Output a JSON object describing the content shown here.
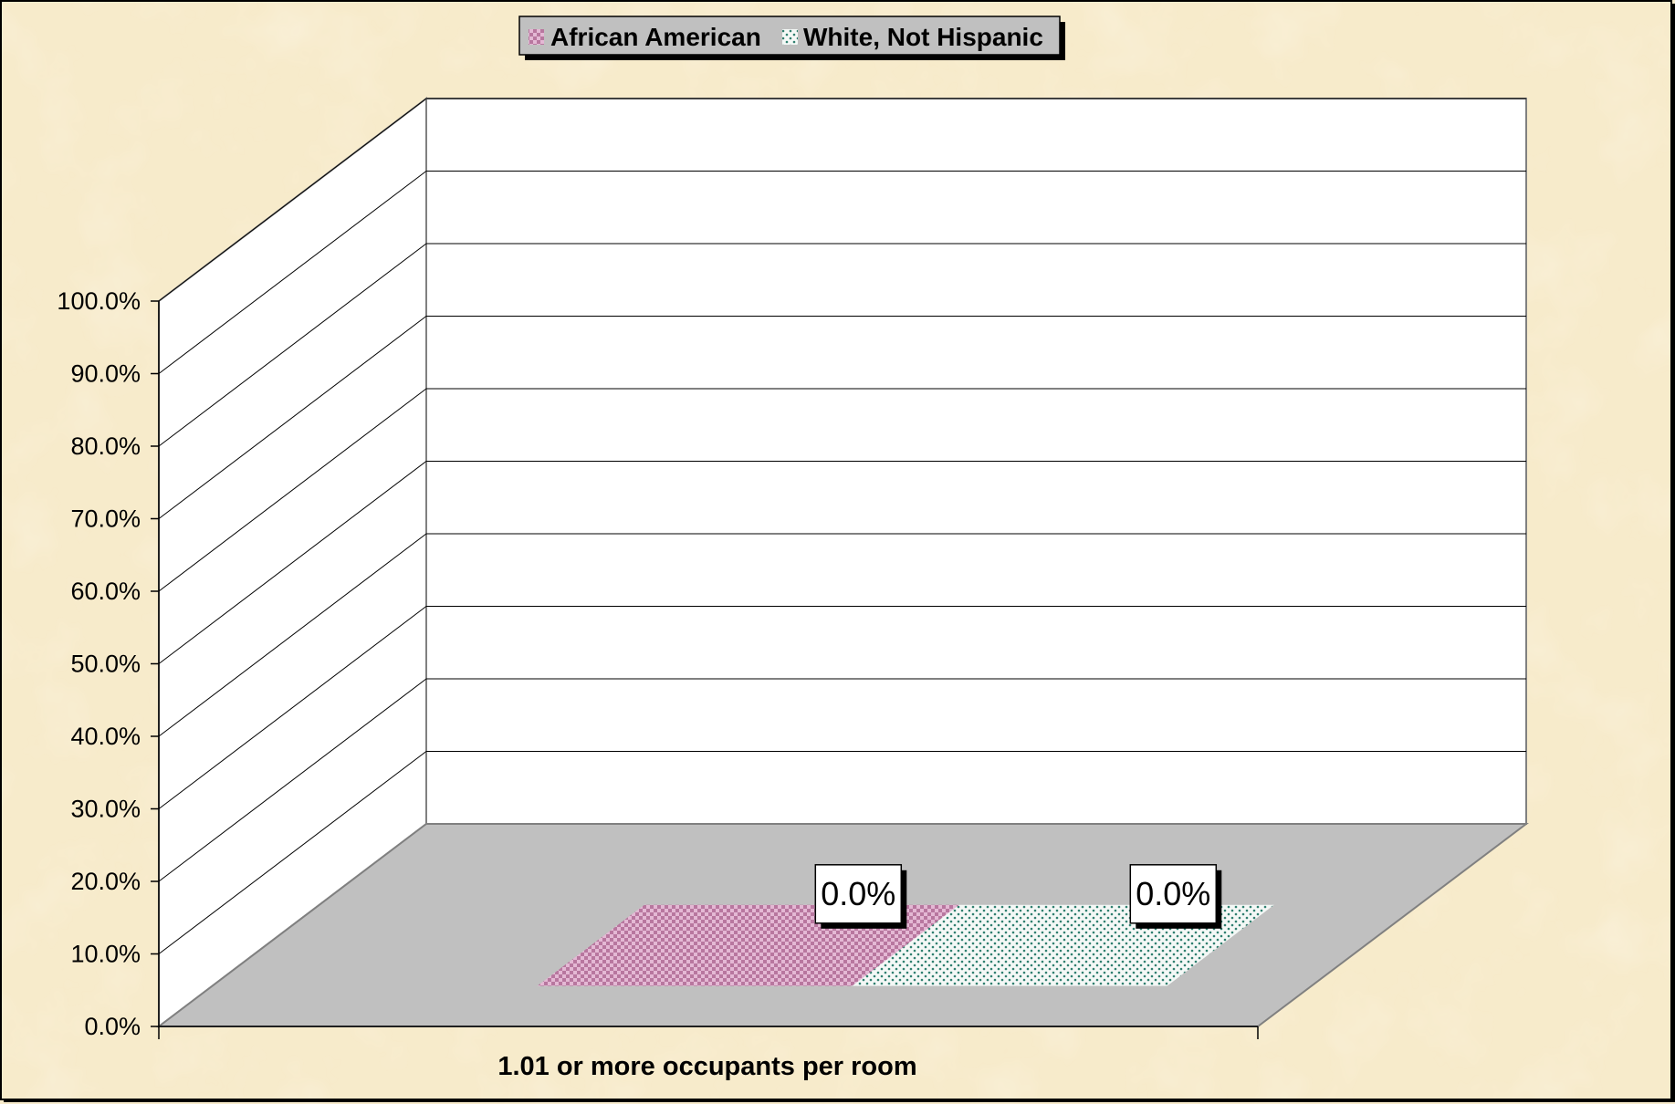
{
  "chart_data": {
    "type": "bar",
    "categories": [
      "1.01 or more occupants per room"
    ],
    "series": [
      {
        "name": "African American",
        "values": [
          0.0
        ],
        "data_labels": [
          "0.0%"
        ],
        "color": "#d9a0c8",
        "pattern": "checker"
      },
      {
        "name": "White, Not Hispanic",
        "values": [
          0.0
        ],
        "data_labels": [
          "0.0%"
        ],
        "color": "#2f7f6f",
        "pattern": "dots"
      }
    ],
    "ylim": [
      0,
      100
    ],
    "y_ticks": [
      0,
      10,
      20,
      30,
      40,
      50,
      60,
      70,
      80,
      90,
      100
    ],
    "y_tick_labels": [
      "0.0%",
      "10.0%",
      "20.0%",
      "30.0%",
      "40.0%",
      "50.0%",
      "60.0%",
      "70.0%",
      "80.0%",
      "90.0%",
      "100.0%"
    ],
    "grid": true,
    "legend_position": "top",
    "style": "3d",
    "colors": {
      "background": "#f7ebcb",
      "floor": "#c0c0c0",
      "walls": "#ffffff"
    }
  }
}
